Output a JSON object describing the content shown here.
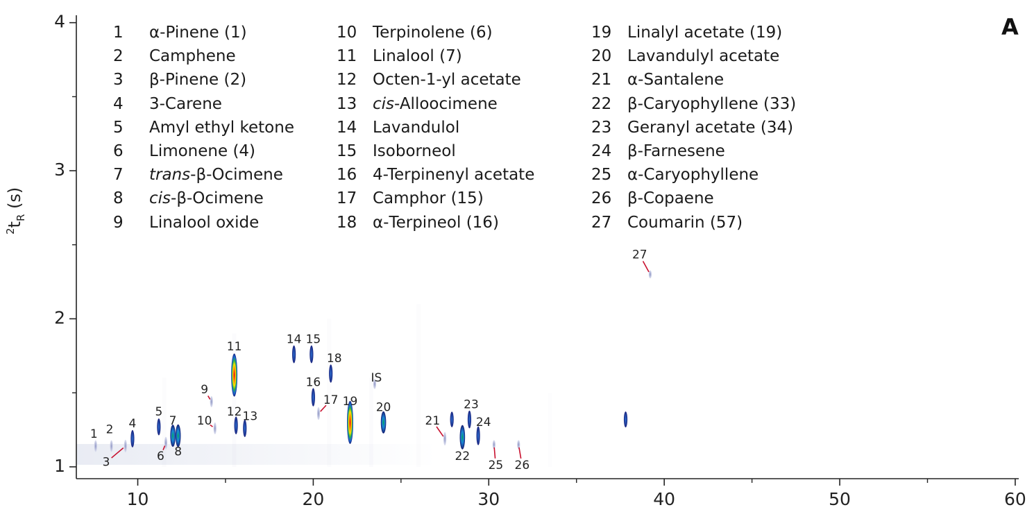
{
  "panel_label": "A",
  "legend": {
    "columns": [
      [
        {
          "num": "1",
          "pre": "",
          "italic": "",
          "name": "α-Pinene (1)"
        },
        {
          "num": "2",
          "pre": "",
          "italic": "",
          "name": "Camphene"
        },
        {
          "num": "3",
          "pre": "",
          "italic": "",
          "name": "β-Pinene (2)"
        },
        {
          "num": "4",
          "pre": "",
          "italic": "",
          "name": "3-Carene"
        },
        {
          "num": "5",
          "pre": "",
          "italic": "",
          "name": "Amyl ethyl ketone"
        },
        {
          "num": "6",
          "pre": "",
          "italic": "",
          "name": "Limonene (4)"
        },
        {
          "num": "7",
          "pre": "",
          "italic": "trans",
          "name": "-β-Ocimene"
        },
        {
          "num": "8",
          "pre": "",
          "italic": "cis",
          "name": "-β-Ocimene"
        },
        {
          "num": "9",
          "pre": "",
          "italic": "",
          "name": "Linalool oxide"
        }
      ],
      [
        {
          "num": "10",
          "pre": "",
          "italic": "",
          "name": "Terpinolene (6)"
        },
        {
          "num": "11",
          "pre": "",
          "italic": "",
          "name": "Linalool (7)"
        },
        {
          "num": "12",
          "pre": "",
          "italic": "",
          "name": "Octen-1-yl acetate"
        },
        {
          "num": "13",
          "pre": "",
          "italic": "cis",
          "name": "-Alloocimene"
        },
        {
          "num": "14",
          "pre": "",
          "italic": "",
          "name": "Lavandulol"
        },
        {
          "num": "15",
          "pre": "",
          "italic": "",
          "name": "Isoborneol"
        },
        {
          "num": "16",
          "pre": "",
          "italic": "",
          "name": "4-Terpinenyl acetate"
        },
        {
          "num": "17",
          "pre": "",
          "italic": "",
          "name": "Camphor (15)"
        },
        {
          "num": "18",
          "pre": "",
          "italic": "",
          "name": "α-Terpineol (16)"
        }
      ],
      [
        {
          "num": "19",
          "pre": "",
          "italic": "",
          "name": "Linalyl acetate (19)"
        },
        {
          "num": "20",
          "pre": "",
          "italic": "",
          "name": "Lavandulyl acetate"
        },
        {
          "num": "21",
          "pre": "",
          "italic": "",
          "name": "α-Santalene"
        },
        {
          "num": "22",
          "pre": "",
          "italic": "",
          "name": "β-Caryophyllene (33)"
        },
        {
          "num": "23",
          "pre": "",
          "italic": "",
          "name": "Geranyl acetate (34)"
        },
        {
          "num": "24",
          "pre": "",
          "italic": "",
          "name": "β-Farnesene"
        },
        {
          "num": "25",
          "pre": "",
          "italic": "",
          "name": "α-Caryophyllene"
        },
        {
          "num": "26",
          "pre": "",
          "italic": "",
          "name": "β-Copaene"
        },
        {
          "num": "27",
          "pre": "",
          "italic": "",
          "name": "Coumarin (57)"
        }
      ]
    ]
  },
  "yaxis_label": {
    "sup": "2",
    "main": "t",
    "sub": "R",
    "unit": " (s)"
  },
  "chart_data": {
    "type": "heatmap",
    "title": "",
    "xlabel": "",
    "ylabel": "²t_R (s)",
    "xlim": [
      6.5,
      60.2
    ],
    "ylim": [
      0.92,
      4.05
    ],
    "x_ticks": [
      10,
      20,
      30,
      40,
      50,
      60
    ],
    "x_minor_ticks": [
      15,
      25,
      35,
      45,
      55
    ],
    "y_ticks": [
      1,
      2,
      3,
      4
    ],
    "y_minor_ticks": [
      1.5,
      2.5,
      3.5
    ],
    "grid": false,
    "peaks": [
      {
        "id": "1",
        "x": 7.6,
        "y": 1.14,
        "intensity": 0.12
      },
      {
        "id": "2",
        "x": 8.5,
        "y": 1.14,
        "intensity": 0.12
      },
      {
        "id": "3",
        "x": 9.3,
        "y": 1.14,
        "intensity": 0.14
      },
      {
        "id": "4",
        "x": 9.7,
        "y": 1.19,
        "intensity": 0.28
      },
      {
        "id": "5",
        "x": 11.2,
        "y": 1.27,
        "intensity": 0.26
      },
      {
        "id": "6",
        "x": 11.6,
        "y": 1.16,
        "intensity": 0.14
      },
      {
        "id": "7",
        "x": 12.0,
        "y": 1.21,
        "intensity": 0.5
      },
      {
        "id": "8",
        "x": 12.3,
        "y": 1.21,
        "intensity": 0.55
      },
      {
        "id": "9",
        "x": 14.2,
        "y": 1.44,
        "intensity": 0.1
      },
      {
        "id": "10",
        "x": 14.4,
        "y": 1.26,
        "intensity": 0.12
      },
      {
        "id": "11",
        "x": 15.5,
        "y": 1.62,
        "intensity": 1.0
      },
      {
        "id": "12",
        "x": 15.6,
        "y": 1.28,
        "intensity": 0.3
      },
      {
        "id": "13",
        "x": 16.1,
        "y": 1.26,
        "intensity": 0.28
      },
      {
        "id": "14",
        "x": 18.9,
        "y": 1.76,
        "intensity": 0.3
      },
      {
        "id": "15",
        "x": 19.9,
        "y": 1.76,
        "intensity": 0.3
      },
      {
        "id": "16",
        "x": 20.0,
        "y": 1.47,
        "intensity": 0.32
      },
      {
        "id": "17",
        "x": 20.3,
        "y": 1.36,
        "intensity": 0.14
      },
      {
        "id": "18",
        "x": 21.0,
        "y": 1.63,
        "intensity": 0.32
      },
      {
        "id": "IS",
        "x": 23.5,
        "y": 1.56,
        "intensity": 0.08
      },
      {
        "id": "19",
        "x": 22.1,
        "y": 1.3,
        "intensity": 1.0
      },
      {
        "id": "20",
        "x": 24.0,
        "y": 1.3,
        "intensity": 0.5
      },
      {
        "id": "21",
        "x": 27.5,
        "y": 1.19,
        "intensity": 0.16
      },
      {
        "id": "22",
        "x": 28.5,
        "y": 1.2,
        "intensity": 0.7
      },
      {
        "id": "23",
        "x": 28.9,
        "y": 1.32,
        "intensity": 0.3
      },
      {
        "id": "24",
        "x": 29.4,
        "y": 1.21,
        "intensity": 0.35
      },
      {
        "id": "25",
        "x": 30.3,
        "y": 1.15,
        "intensity": 0.05
      },
      {
        "id": "26",
        "x": 31.7,
        "y": 1.15,
        "intensity": 0.05
      },
      {
        "id": "27",
        "x": 39.2,
        "y": 2.3,
        "intensity": 0.03
      },
      {
        "id": "",
        "x": 37.8,
        "y": 1.32,
        "intensity": 0.22
      },
      {
        "id": "",
        "x": 27.9,
        "y": 1.32,
        "intensity": 0.2
      }
    ],
    "peak_labels": [
      {
        "text": "1",
        "x": 7.5,
        "y": 1.22,
        "leader": false
      },
      {
        "text": "2",
        "x": 8.4,
        "y": 1.25,
        "leader": false
      },
      {
        "text": "3",
        "x": 8.2,
        "y": 1.03,
        "leader": true
      },
      {
        "text": "4",
        "x": 9.7,
        "y": 1.29,
        "leader": false
      },
      {
        "text": "5",
        "x": 11.2,
        "y": 1.37,
        "leader": false
      },
      {
        "text": "6",
        "x": 11.3,
        "y": 1.07,
        "leader": true
      },
      {
        "text": "7",
        "x": 12.0,
        "y": 1.31,
        "leader": false
      },
      {
        "text": "8",
        "x": 12.3,
        "y": 1.1,
        "leader": false
      },
      {
        "text": "9",
        "x": 13.8,
        "y": 1.52,
        "leader": true
      },
      {
        "text": "10",
        "x": 13.8,
        "y": 1.31,
        "leader": true
      },
      {
        "text": "11",
        "x": 15.5,
        "y": 1.81,
        "leader": false
      },
      {
        "text": "12",
        "x": 15.5,
        "y": 1.37,
        "leader": false
      },
      {
        "text": "13",
        "x": 16.4,
        "y": 1.34,
        "leader": false
      },
      {
        "text": "14",
        "x": 18.9,
        "y": 1.86,
        "leader": false
      },
      {
        "text": "15",
        "x": 20.0,
        "y": 1.86,
        "leader": false
      },
      {
        "text": "16",
        "x": 20.0,
        "y": 1.57,
        "leader": false
      },
      {
        "text": "17",
        "x": 21.0,
        "y": 1.45,
        "leader": true
      },
      {
        "text": "18",
        "x": 21.2,
        "y": 1.73,
        "leader": false
      },
      {
        "text": "19",
        "x": 22.1,
        "y": 1.44,
        "leader": false
      },
      {
        "text": "IS",
        "x": 23.6,
        "y": 1.6,
        "leader": false
      },
      {
        "text": "20",
        "x": 24.0,
        "y": 1.4,
        "leader": false
      },
      {
        "text": "21",
        "x": 26.8,
        "y": 1.31,
        "leader": true
      },
      {
        "text": "22",
        "x": 28.5,
        "y": 1.07,
        "leader": false
      },
      {
        "text": "23",
        "x": 29.0,
        "y": 1.42,
        "leader": false
      },
      {
        "text": "24",
        "x": 29.7,
        "y": 1.3,
        "leader": false
      },
      {
        "text": "25",
        "x": 30.4,
        "y": 1.01,
        "leader": true
      },
      {
        "text": "26",
        "x": 31.9,
        "y": 1.01,
        "leader": true
      },
      {
        "text": "27",
        "x": 38.6,
        "y": 2.43,
        "leader": true
      }
    ]
  }
}
